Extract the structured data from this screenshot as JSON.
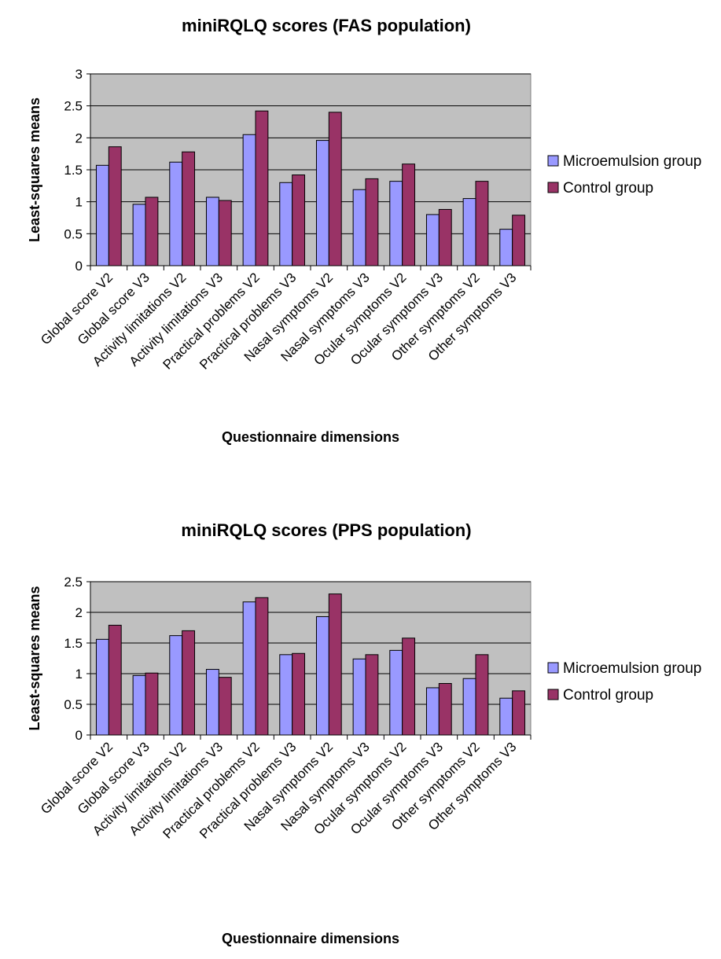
{
  "chart_data": [
    {
      "type": "bar",
      "title": "miniRQLQ scores (FAS population)",
      "xlabel": "Questionnaire dimensions",
      "ylabel": "Least-squares means",
      "ylim": [
        0,
        3
      ],
      "yticks": [
        "0",
        "0.5",
        "1",
        "1.5",
        "2",
        "2.5",
        "3"
      ],
      "grid": true,
      "legend_position": "right",
      "categories": [
        "Global score V2",
        "Global score V3",
        "Activity limitations V2",
        "Activity limitations V3",
        "Practical problems V2",
        "Practical problems V3",
        "Nasal symptoms V2",
        "Nasal symptoms V3",
        "Ocular symptoms V2",
        "Ocular symptoms V3",
        "Other symptoms V2",
        "Other symptoms V3"
      ],
      "series": [
        {
          "name": "Microemulsion group",
          "color": "#9999ff",
          "values": [
            1.57,
            0.96,
            1.62,
            1.07,
            2.05,
            1.3,
            1.96,
            1.19,
            1.32,
            0.8,
            1.05,
            0.57
          ]
        },
        {
          "name": "Control group",
          "color": "#993366",
          "values": [
            1.86,
            1.07,
            1.78,
            1.02,
            2.42,
            1.42,
            2.4,
            1.36,
            1.59,
            0.88,
            1.32,
            0.79
          ]
        }
      ]
    },
    {
      "type": "bar",
      "title": "miniRQLQ scores (PPS population)",
      "xlabel": "Questionnaire dimensions",
      "ylabel": "Least-squares means",
      "ylim": [
        0,
        2.5
      ],
      "yticks": [
        "0",
        "0.5",
        "1",
        "1.5",
        "2",
        "2.5"
      ],
      "grid": true,
      "legend_position": "right",
      "categories": [
        "Global score V2",
        "Global score V3",
        "Activity limitations V2",
        "Activity limitations V3",
        "Practical problems V2",
        "Practical problems V3",
        "Nasal symptoms V2",
        "Nasal symptoms V3",
        "Ocular symptoms V2",
        "Ocular symptoms V3",
        "Other symptoms V2",
        "Other symptoms V3"
      ],
      "series": [
        {
          "name": "Microemulsion group",
          "color": "#9999ff",
          "values": [
            1.56,
            0.97,
            1.62,
            1.07,
            2.17,
            1.31,
            1.93,
            1.24,
            1.38,
            0.77,
            0.92,
            0.6
          ]
        },
        {
          "name": "Control group",
          "color": "#993366",
          "values": [
            1.79,
            1.01,
            1.7,
            0.94,
            2.24,
            1.33,
            2.3,
            1.31,
            1.58,
            0.84,
            1.31,
            0.72
          ]
        }
      ]
    }
  ]
}
